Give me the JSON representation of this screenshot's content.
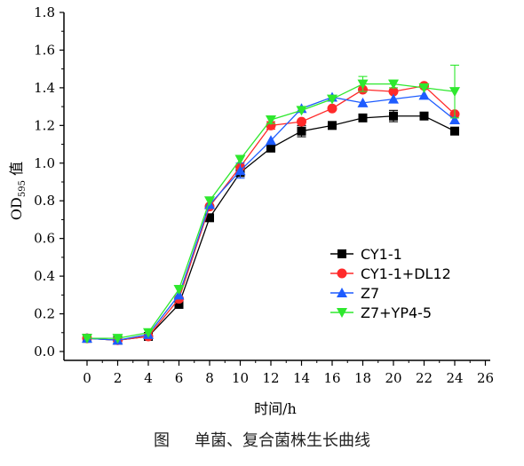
{
  "chart_data": {
    "type": "line",
    "x": [
      0,
      2,
      4,
      6,
      8,
      10,
      12,
      14,
      16,
      18,
      20,
      22,
      24
    ],
    "xlabel": "时间/h",
    "ylabel_main": "OD",
    "ylabel_sub": "595",
    "ylabel_suffix": " 值",
    "xlim": [
      0,
      26
    ],
    "ylim": [
      0.0,
      1.8
    ],
    "xticks": [
      "0",
      "2",
      "4",
      "6",
      "8",
      "10",
      "12",
      "14",
      "16",
      "18",
      "20",
      "22",
      "24",
      "26"
    ],
    "yticks": [
      "0.0",
      "0.2",
      "0.4",
      "0.6",
      "0.8",
      "1.0",
      "1.2",
      "1.4",
      "1.6",
      "1.8"
    ],
    "legend_position": "bottom-right",
    "series": [
      {
        "name": "CY1-1",
        "color": "#000000",
        "marker": "square",
        "values": [
          0.07,
          0.06,
          0.08,
          0.25,
          0.71,
          0.95,
          1.08,
          1.17,
          1.2,
          1.24,
          1.25,
          1.25,
          1.17
        ],
        "errors": [
          0,
          0,
          0,
          0,
          0,
          0.02,
          0.02,
          0.03,
          0,
          0,
          0.03,
          0,
          0
        ]
      },
      {
        "name": "CY1-1+DL12",
        "color": "#ff2a2a",
        "marker": "circle",
        "values": [
          0.07,
          0.06,
          0.08,
          0.28,
          0.77,
          0.98,
          1.2,
          1.22,
          1.29,
          1.39,
          1.38,
          1.41,
          1.26
        ],
        "errors": [
          0,
          0,
          0,
          0,
          0,
          0,
          0.02,
          0,
          0,
          0,
          0,
          0,
          0
        ]
      },
      {
        "name": "Z7",
        "color": "#1e5cff",
        "marker": "triangle-up",
        "values": [
          0.07,
          0.06,
          0.09,
          0.3,
          0.78,
          0.96,
          1.12,
          1.29,
          1.35,
          1.32,
          1.34,
          1.36,
          1.23
        ],
        "errors": [
          0,
          0,
          0,
          0,
          0,
          0.04,
          0,
          0,
          0,
          0,
          0,
          0,
          0
        ]
      },
      {
        "name": "Z7+YP4-5",
        "color": "#2ee82e",
        "marker": "triangle-down",
        "values": [
          0.07,
          0.07,
          0.1,
          0.33,
          0.8,
          1.02,
          1.23,
          1.28,
          1.34,
          1.42,
          1.42,
          1.4,
          1.38
        ],
        "errors": [
          0,
          0,
          0,
          0,
          0,
          0,
          0.02,
          0,
          0,
          0.04,
          0.02,
          0,
          0.14
        ]
      }
    ]
  },
  "caption": {
    "label": "图",
    "text": "单菌、复合菌株生长曲线"
  }
}
